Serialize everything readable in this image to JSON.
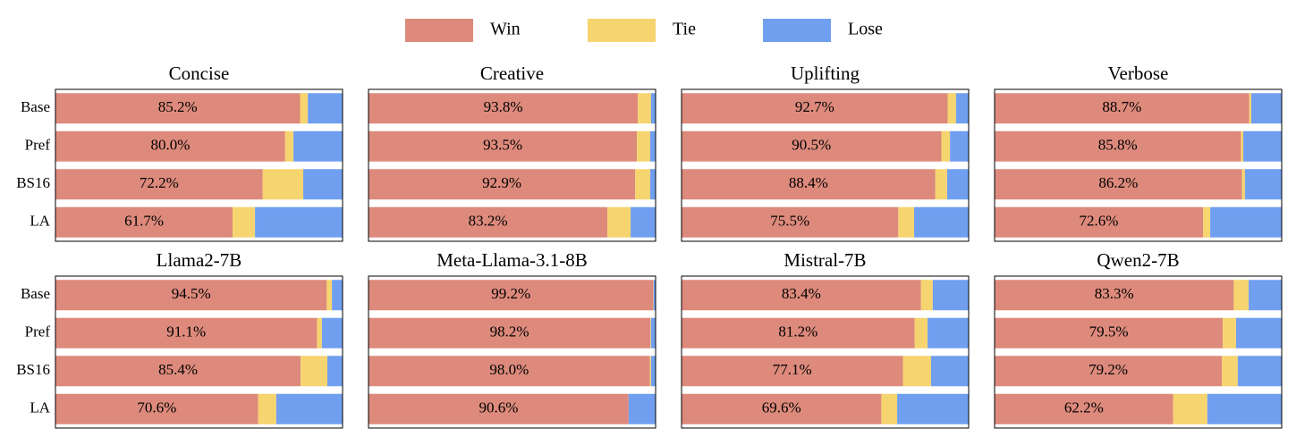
{
  "chart_data": {
    "type": "stacked-barh",
    "xlim": [
      0,
      100
    ],
    "series": [
      {
        "name": "Win",
        "color": "#dd8a7c"
      },
      {
        "name": "Tie",
        "color": "#f6d46f"
      },
      {
        "name": "Lose",
        "color": "#719ff0"
      }
    ],
    "categories": [
      "Base",
      "Pref",
      "BS16",
      "LA"
    ],
    "panels": [
      {
        "title": "Concise",
        "values": [
          [
            85.2,
            80.0,
            72.2,
            61.7
          ],
          [
            2.7,
            2.9,
            14.1,
            7.8
          ],
          [
            12.1,
            17.1,
            13.7,
            30.5
          ]
        ],
        "value_labels": [
          "85.2%",
          "80.0%",
          "72.2%",
          "61.7%"
        ]
      },
      {
        "title": "Creative",
        "values": [
          [
            93.8,
            93.5,
            92.9,
            83.2
          ],
          [
            4.6,
            4.6,
            5.2,
            8.1
          ],
          [
            1.6,
            1.9,
            1.9,
            8.7
          ]
        ],
        "value_labels": [
          "93.8%",
          "93.5%",
          "92.9%",
          "83.2%"
        ]
      },
      {
        "title": "Uplifting",
        "values": [
          [
            92.7,
            90.5,
            88.4,
            75.5
          ],
          [
            2.9,
            3.0,
            4.1,
            5.5
          ],
          [
            4.4,
            6.5,
            7.5,
            19.0
          ]
        ],
        "value_labels": [
          "92.7%",
          "90.5%",
          "88.4%",
          "75.5%"
        ]
      },
      {
        "title": "Verbose",
        "values": [
          [
            88.7,
            85.8,
            86.2,
            72.6
          ],
          [
            0.7,
            0.8,
            1.0,
            2.5
          ],
          [
            10.6,
            13.4,
            12.8,
            24.9
          ]
        ],
        "value_labels": [
          "88.7%",
          "85.8%",
          "86.2%",
          "72.6%"
        ]
      },
      {
        "title": "Llama2-7B",
        "values": [
          [
            94.5,
            91.1,
            85.4,
            70.6
          ],
          [
            1.8,
            1.7,
            9.3,
            6.3
          ],
          [
            3.7,
            7.2,
            5.3,
            23.1
          ]
        ],
        "value_labels": [
          "94.5%",
          "91.1%",
          "85.4%",
          "70.6%"
        ]
      },
      {
        "title": "Meta-Llama-3.1-8B",
        "values": [
          [
            99.2,
            98.2,
            98.0,
            90.6
          ],
          [
            0.1,
            0.2,
            0.4,
            0
          ],
          [
            0.7,
            1.6,
            1.6,
            9.4
          ]
        ],
        "value_labels": [
          "99.2%",
          "98.2%",
          "98.0%",
          "90.6%"
        ]
      },
      {
        "title": "Mistral-7B",
        "values": [
          [
            83.4,
            81.2,
            77.1,
            69.6
          ],
          [
            4.1,
            4.5,
            9.8,
            5.5
          ],
          [
            12.5,
            14.3,
            13.1,
            24.9
          ]
        ],
        "value_labels": [
          "83.4%",
          "81.2%",
          "77.1%",
          "69.6%"
        ]
      },
      {
        "title": "Qwen2-7B",
        "values": [
          [
            83.3,
            79.5,
            79.2,
            62.2
          ],
          [
            5.2,
            4.6,
            5.5,
            11.9
          ],
          [
            11.5,
            15.9,
            15.3,
            25.9
          ]
        ],
        "value_labels": [
          "83.3%",
          "79.5%",
          "79.2%",
          "62.2%"
        ]
      }
    ]
  }
}
